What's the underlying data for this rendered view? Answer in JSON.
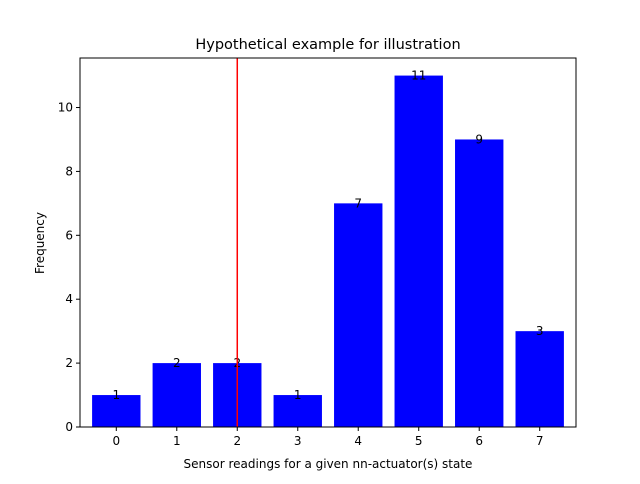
{
  "chart_data": {
    "type": "bar",
    "title": "Hypothetical example for illustration",
    "xlabel": "Sensor readings for a given nn-actuator(s) state",
    "ylabel": "Frequency",
    "categories": [
      "0",
      "1",
      "2",
      "3",
      "4",
      "5",
      "6",
      "7"
    ],
    "values": [
      1,
      2,
      2,
      1,
      7,
      11,
      9,
      3
    ],
    "data_labels": [
      "1",
      "2",
      "2",
      "1",
      "7",
      "11",
      "9",
      "3"
    ],
    "ylim": [
      0,
      11.55
    ],
    "yticks": [
      0,
      2,
      4,
      6,
      8,
      10
    ],
    "ytick_labels": [
      "0",
      "2",
      "4",
      "6",
      "8",
      "10"
    ],
    "bar_color": "#0000ff",
    "vline": {
      "x": 2,
      "color": "#ff0000"
    },
    "grid": false,
    "legend": "none"
  }
}
